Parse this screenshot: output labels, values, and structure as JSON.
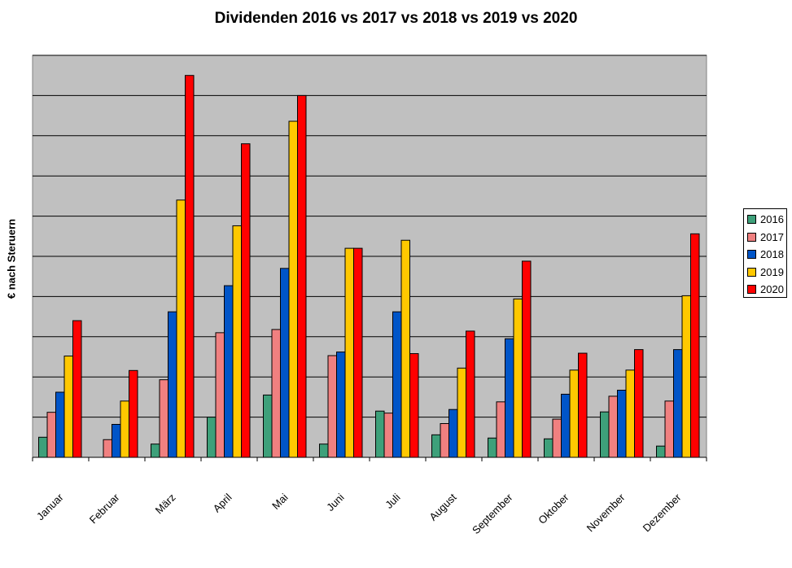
{
  "chart_data": {
    "type": "bar",
    "title": "Dividenden 2016 vs 2017 vs 2018 vs 2019 vs 2020",
    "xlabel": "",
    "ylabel": "€ nach Steruern",
    "ylim": [
      0,
      10
    ],
    "grid": true,
    "legend_position": "right",
    "categories": [
      "Januar",
      "Februar",
      "März",
      "April",
      "Mai",
      "Juni",
      "Juli",
      "August",
      "September",
      "Oktober",
      "November",
      "Dezember"
    ],
    "series": [
      {
        "name": "2016",
        "color": "#3ea07a",
        "values": [
          0.5,
          0.0,
          0.33,
          1.0,
          1.55,
          0.33,
          1.15,
          0.56,
          0.48,
          0.46,
          1.13,
          0.28
        ]
      },
      {
        "name": "2017",
        "color": "#f08080",
        "values": [
          1.12,
          0.44,
          1.93,
          3.1,
          3.18,
          2.53,
          1.1,
          0.84,
          1.38,
          0.95,
          1.52,
          1.4
        ]
      },
      {
        "name": "2018",
        "color": "#0055c8",
        "values": [
          1.62,
          0.82,
          3.62,
          4.27,
          4.7,
          2.62,
          3.62,
          1.19,
          2.95,
          1.57,
          1.67,
          2.68
        ]
      },
      {
        "name": "2019",
        "color": "#ffc800",
        "values": [
          2.52,
          1.4,
          6.4,
          5.76,
          8.36,
          5.2,
          5.4,
          2.22,
          3.94,
          2.17,
          2.17,
          4.02
        ]
      },
      {
        "name": "2020",
        "color": "#ff0000",
        "values": [
          3.4,
          2.16,
          9.5,
          7.8,
          9.0,
          5.2,
          2.58,
          3.14,
          4.88,
          2.59,
          2.68,
          5.56
        ]
      }
    ]
  }
}
